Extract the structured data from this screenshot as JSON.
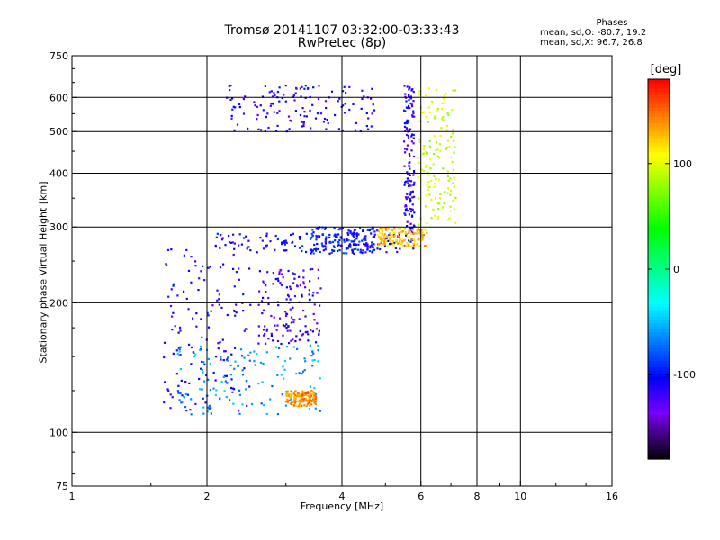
{
  "header": {
    "title": "Tromsø 20141107 03:32:00-03:33:43",
    "subtitle": "RwPretec (8p)"
  },
  "phases_box": {
    "title": "Phases",
    "line_o": "mean, sd,O: -80.7, 19.2",
    "line_x": "mean, sd,X: 96.7, 26.8"
  },
  "chart_data": {
    "type": "scatter",
    "title": "Tromsø 20141107 03:32:00-03:33:43",
    "subtitle": "RwPretec (8p)",
    "xlabel": "Frequency [MHz]",
    "ylabel": "Stationary phase Virtual Height [km]",
    "x_scale": "log",
    "y_scale": "log",
    "xlim": [
      1,
      16
    ],
    "ylim": [
      75,
      750
    ],
    "x_ticks": [
      1,
      2,
      4,
      6,
      8,
      10,
      16
    ],
    "y_ticks": [
      75,
      100,
      200,
      300,
      400,
      500,
      600,
      750
    ],
    "x_tick_labels": [
      "1",
      "2",
      "4",
      "6",
      "8",
      "10",
      "16"
    ],
    "y_tick_labels": [
      "75",
      "100",
      "200",
      "300",
      "400",
      "500",
      "600",
      "750"
    ],
    "grid": true,
    "colorbar": {
      "label": "[deg]",
      "range": [
        -180,
        180
      ],
      "ticks": [
        100,
        0,
        -100
      ],
      "tick_labels": [
        "100",
        "0",
        "-100"
      ],
      "colormap": "rainbow"
    },
    "series": [
      {
        "traces": [
          {
            "x0": 1.6,
            "x1": 2.5,
            "h0": 112,
            "h1": 270,
            "phase": -110
          },
          {
            "x0": 2.0,
            "x1": 5.8,
            "h0": 262,
            "h1": 290,
            "phase": -105
          },
          {
            "x0": 3.4,
            "x1": 4.8,
            "h0": 260,
            "h1": 300,
            "phase": -95
          },
          {
            "x0": 2.2,
            "x1": 4.8,
            "h0": 500,
            "h1": 640,
            "phase": -110
          },
          {
            "x0": 5.5,
            "x1": 5.8,
            "h0": 290,
            "h1": 640,
            "phase": -110
          },
          {
            "x0": 1.7,
            "x1": 3.6,
            "h0": 110,
            "h1": 160,
            "phase": -60
          },
          {
            "x0": 2.6,
            "x1": 3.6,
            "h0": 160,
            "h1": 240,
            "phase": -120
          },
          {
            "x0": 4.8,
            "x1": 6.2,
            "h0": 270,
            "h1": 300,
            "phase": 130
          },
          {
            "x0": 5.9,
            "x1": 7.2,
            "h0": 300,
            "h1": 630,
            "phase": 95
          },
          {
            "x0": 3.0,
            "x1": 3.5,
            "h0": 115,
            "h1": 125,
            "phase": 140
          }
        ]
      }
    ]
  }
}
